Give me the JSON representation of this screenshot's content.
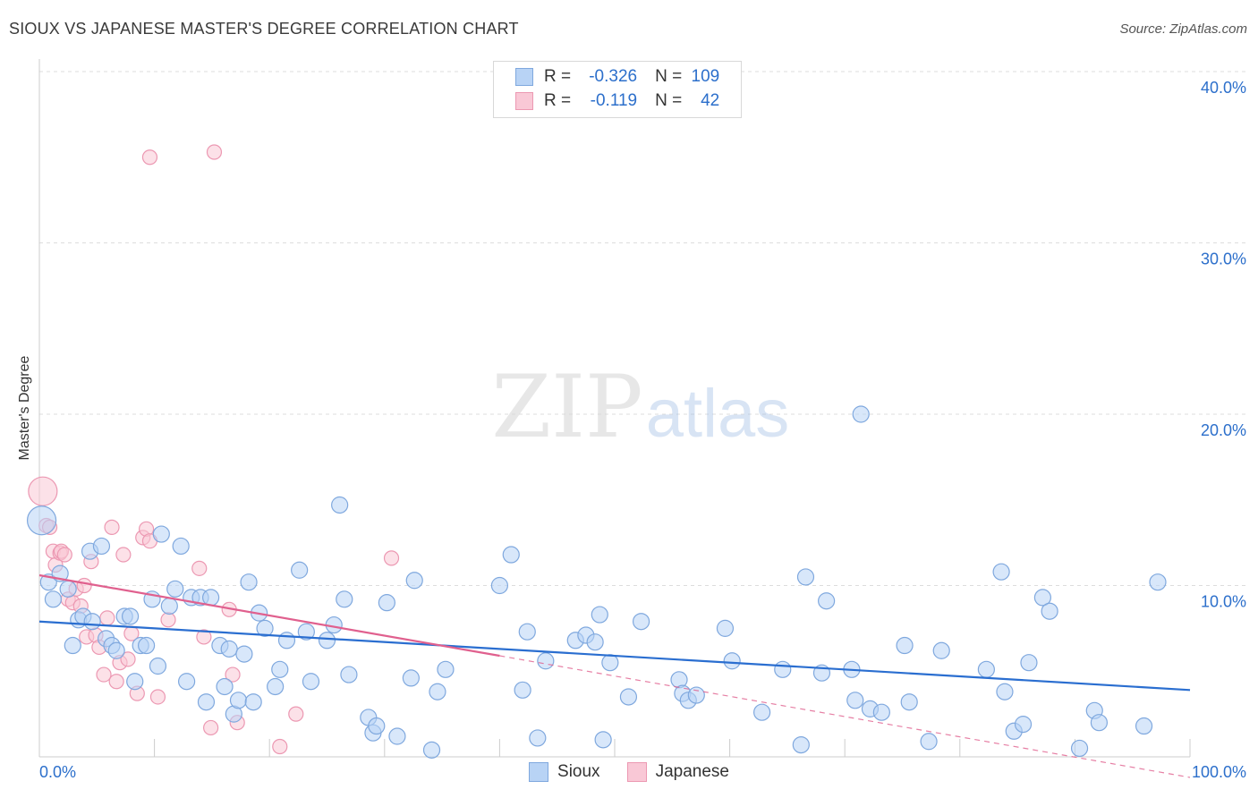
{
  "header": {
    "title": "SIOUX VS JAPANESE MASTER'S DEGREE CORRELATION CHART",
    "source": "Source: ZipAtlas.com"
  },
  "watermark": {
    "zip": "ZIP",
    "atlas": "atlas"
  },
  "legend": {
    "rows": [
      {
        "r_label": "R =",
        "r_value": "-0.326",
        "n_label": "N =",
        "n_value": "109"
      },
      {
        "r_label": "R =",
        "r_value": "-0.119",
        "n_label": "N =",
        "n_value": "42"
      }
    ]
  },
  "bottom_legend": {
    "sioux": "Sioux",
    "japanese": "Japanese"
  },
  "colors": {
    "sioux_fill": "#b8d3f5",
    "sioux_stroke": "#7fa8de",
    "sioux_line": "#2a6ed0",
    "japanese_fill": "#f9c8d6",
    "japanese_stroke": "#ec98b2",
    "japanese_line": "#e0608e",
    "tick_label": "#2c6fcb",
    "grid": "#dddddd"
  },
  "chart_data": {
    "type": "scatter",
    "title": "SIOUX VS JAPANESE MASTER'S DEGREE CORRELATION CHART",
    "xlabel": "",
    "ylabel": "Master's Degree",
    "xlim": [
      0,
      100
    ],
    "ylim": [
      0,
      40
    ],
    "x_tick_labels": [
      "0.0%",
      "100.0%"
    ],
    "y_ticks": [
      10,
      20,
      30,
      40
    ],
    "y_tick_labels": [
      "10.0%",
      "20.0%",
      "30.0%",
      "40.0%"
    ],
    "grid": "horizontal dashed",
    "series": [
      {
        "name": "Sioux",
        "r": -0.326,
        "n": 109,
        "trend": {
          "x0": 0,
          "y0": 7.9,
          "x1": 100,
          "y1": 3.9
        },
        "points": [
          [
            0.2,
            13.8
          ],
          [
            0.8,
            10.2
          ],
          [
            1.2,
            9.2
          ],
          [
            1.8,
            10.7
          ],
          [
            2.5,
            9.8
          ],
          [
            2.9,
            6.5
          ],
          [
            3.4,
            8.0
          ],
          [
            3.8,
            8.2
          ],
          [
            4.4,
            12.0
          ],
          [
            4.6,
            7.9
          ],
          [
            5.4,
            12.3
          ],
          [
            5.8,
            6.9
          ],
          [
            6.3,
            6.5
          ],
          [
            6.7,
            6.2
          ],
          [
            7.4,
            8.2
          ],
          [
            7.9,
            8.2
          ],
          [
            8.3,
            4.4
          ],
          [
            8.8,
            6.5
          ],
          [
            9.3,
            6.5
          ],
          [
            9.8,
            9.2
          ],
          [
            10.3,
            5.3
          ],
          [
            10.6,
            13.0
          ],
          [
            11.3,
            8.8
          ],
          [
            11.8,
            9.8
          ],
          [
            12.3,
            12.3
          ],
          [
            12.8,
            4.4
          ],
          [
            13.2,
            9.3
          ],
          [
            14.0,
            9.3
          ],
          [
            14.5,
            3.2
          ],
          [
            14.9,
            9.3
          ],
          [
            15.7,
            6.5
          ],
          [
            16.1,
            4.1
          ],
          [
            16.5,
            6.3
          ],
          [
            16.9,
            2.5
          ],
          [
            17.3,
            3.3
          ],
          [
            17.8,
            6.0
          ],
          [
            18.2,
            10.2
          ],
          [
            18.6,
            3.2
          ],
          [
            19.1,
            8.4
          ],
          [
            19.6,
            7.5
          ],
          [
            20.5,
            4.1
          ],
          [
            20.9,
            5.1
          ],
          [
            21.5,
            6.8
          ],
          [
            22.6,
            10.9
          ],
          [
            23.2,
            7.3
          ],
          [
            23.6,
            4.4
          ],
          [
            25.0,
            6.8
          ],
          [
            25.6,
            7.7
          ],
          [
            26.1,
            14.7
          ],
          [
            26.5,
            9.2
          ],
          [
            26.9,
            4.8
          ],
          [
            28.6,
            2.3
          ],
          [
            29.0,
            1.4
          ],
          [
            29.3,
            1.8
          ],
          [
            30.2,
            9.0
          ],
          [
            31.1,
            1.2
          ],
          [
            32.3,
            4.6
          ],
          [
            32.6,
            10.3
          ],
          [
            34.1,
            0.4
          ],
          [
            34.6,
            3.8
          ],
          [
            35.3,
            5.1
          ],
          [
            40.0,
            10.0
          ],
          [
            41.0,
            11.8
          ],
          [
            42.0,
            3.9
          ],
          [
            42.4,
            7.3
          ],
          [
            43.3,
            1.1
          ],
          [
            44.0,
            5.6
          ],
          [
            46.6,
            6.8
          ],
          [
            47.5,
            7.1
          ],
          [
            48.3,
            6.7
          ],
          [
            48.7,
            8.3
          ],
          [
            49.0,
            1.0
          ],
          [
            49.6,
            5.5
          ],
          [
            51.2,
            3.5
          ],
          [
            52.3,
            7.9
          ],
          [
            55.6,
            4.5
          ],
          [
            55.9,
            3.7
          ],
          [
            56.4,
            3.3
          ],
          [
            57.1,
            3.6
          ],
          [
            59.6,
            7.5
          ],
          [
            60.2,
            5.6
          ],
          [
            62.8,
            2.6
          ],
          [
            64.6,
            5.1
          ],
          [
            66.2,
            0.7
          ],
          [
            66.6,
            10.5
          ],
          [
            68.0,
            4.9
          ],
          [
            68.4,
            9.1
          ],
          [
            70.6,
            5.1
          ],
          [
            70.9,
            3.3
          ],
          [
            71.4,
            20.0
          ],
          [
            72.2,
            2.8
          ],
          [
            73.2,
            2.6
          ],
          [
            75.6,
            3.2
          ],
          [
            75.2,
            6.5
          ],
          [
            77.3,
            0.9
          ],
          [
            78.4,
            6.2
          ],
          [
            82.3,
            5.1
          ],
          [
            83.6,
            10.8
          ],
          [
            83.9,
            3.8
          ],
          [
            84.7,
            1.5
          ],
          [
            85.5,
            1.9
          ],
          [
            86.0,
            5.5
          ],
          [
            87.2,
            9.3
          ],
          [
            87.8,
            8.5
          ],
          [
            90.4,
            0.5
          ],
          [
            91.7,
            2.7
          ],
          [
            92.1,
            2.0
          ],
          [
            96.0,
            1.8
          ],
          [
            97.2,
            10.2
          ]
        ]
      },
      {
        "name": "Japanese",
        "r": -0.119,
        "n": 42,
        "trend": {
          "x0": 0,
          "y0": 10.6,
          "x1": 40,
          "y1": 5.9
        },
        "trend_extension": {
          "x0": 40,
          "y0": 5.9,
          "x1": 100,
          "y1": -1.2
        },
        "points": [
          [
            0.3,
            15.5
          ],
          [
            0.6,
            13.5
          ],
          [
            0.9,
            13.4
          ],
          [
            1.2,
            12.0
          ],
          [
            1.4,
            11.2
          ],
          [
            1.8,
            11.9
          ],
          [
            1.9,
            12.0
          ],
          [
            2.2,
            11.8
          ],
          [
            2.5,
            9.2
          ],
          [
            2.9,
            9.0
          ],
          [
            3.2,
            9.8
          ],
          [
            3.6,
            8.8
          ],
          [
            3.9,
            10.0
          ],
          [
            4.1,
            7.0
          ],
          [
            4.5,
            11.4
          ],
          [
            4.9,
            7.1
          ],
          [
            5.2,
            6.4
          ],
          [
            5.6,
            4.8
          ],
          [
            5.9,
            8.1
          ],
          [
            6.3,
            13.4
          ],
          [
            6.7,
            4.4
          ],
          [
            7.0,
            5.5
          ],
          [
            7.3,
            11.8
          ],
          [
            7.7,
            5.7
          ],
          [
            8.0,
            7.2
          ],
          [
            8.5,
            3.7
          ],
          [
            9.0,
            12.8
          ],
          [
            9.3,
            13.3
          ],
          [
            9.6,
            12.6
          ],
          [
            9.6,
            35.0
          ],
          [
            10.3,
            3.5
          ],
          [
            11.2,
            8.0
          ],
          [
            13.9,
            11.0
          ],
          [
            14.3,
            7.0
          ],
          [
            14.9,
            1.7
          ],
          [
            15.2,
            35.3
          ],
          [
            16.5,
            8.6
          ],
          [
            16.8,
            4.8
          ],
          [
            17.2,
            2.0
          ],
          [
            20.9,
            0.6
          ],
          [
            22.3,
            2.5
          ],
          [
            30.6,
            11.6
          ]
        ]
      }
    ]
  }
}
